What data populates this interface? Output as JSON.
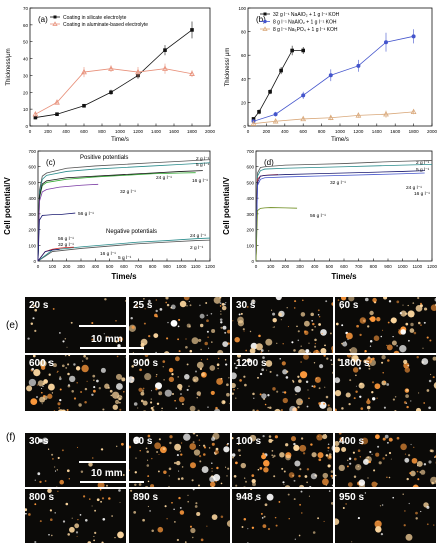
{
  "colors": {
    "black": "#111111",
    "salmon": "#e8907a",
    "navy": "#1a1a70",
    "blue": "#4455cc",
    "tan": "#d9a87a",
    "gray": "#555555",
    "teal": "#2b8c8c",
    "red": "#cc2222",
    "green": "#33aa33",
    "purple": "#7a3aa3",
    "olive": "#6a8a1a",
    "orange": "#d06a2a"
  },
  "chart_data": [
    {
      "id": "a",
      "type": "line",
      "panel_label": "(a)",
      "xlabel": "Time/s",
      "ylabel": "Thickness/μm",
      "xlim": [
        0,
        2000
      ],
      "ylim": [
        0,
        70
      ],
      "xticks": [
        "0",
        "200",
        "400",
        "600",
        "800",
        "1000",
        "1200",
        "1400",
        "1600",
        "1800",
        "2000"
      ],
      "yticks": [
        "0",
        "10",
        "20",
        "30",
        "40",
        "50",
        "60",
        "70"
      ],
      "legend_position": "top-left",
      "series": [
        {
          "name": "Coating in silicate electrolyte",
          "color": "#111111",
          "marker": "square",
          "x": [
            60,
            300,
            600,
            900,
            1200,
            1500,
            1800
          ],
          "y": [
            5,
            7,
            12,
            20,
            30,
            45,
            57
          ],
          "err": [
            1,
            1,
            1,
            1.5,
            2,
            3,
            5
          ]
        },
        {
          "name": "Coating in aluminate-based electrolyte",
          "color": "#e8907a",
          "marker": "triangle",
          "x": [
            60,
            300,
            600,
            900,
            1200,
            1500,
            1800
          ],
          "y": [
            7,
            14,
            32,
            34,
            32,
            34,
            31
          ],
          "err": [
            1,
            1,
            3,
            2,
            3,
            3,
            2
          ]
        }
      ]
    },
    {
      "id": "b",
      "type": "line",
      "panel_label": "(b)",
      "xlabel": "Time/s",
      "ylabel": "Thickness/ μm",
      "xlim": [
        0,
        2000
      ],
      "ylim": [
        0,
        100
      ],
      "xticks": [
        "0",
        "200",
        "400",
        "600",
        "800",
        "1000",
        "1200",
        "1400",
        "1600",
        "1800",
        "2000"
      ],
      "yticks": [
        "0",
        "20",
        "40",
        "60",
        "80",
        "100"
      ],
      "legend_position": "top-left",
      "series": [
        {
          "name": "32 g l⁻¹ NaAlO₂ + 1 g l⁻¹ KOH",
          "color": "#111111",
          "marker": "square",
          "x": [
            60,
            120,
            240,
            360,
            480,
            600
          ],
          "y": [
            6,
            12,
            29,
            47,
            64,
            64
          ],
          "err": [
            1,
            2,
            2,
            3,
            4,
            3
          ]
        },
        {
          "name": "8 g l⁻¹ NaAlO₂ + 1 g l⁻¹ KOH",
          "color": "#4455cc",
          "marker": "circle",
          "x": [
            60,
            300,
            600,
            900,
            1200,
            1500,
            1800
          ],
          "y": [
            4,
            10,
            26,
            43,
            51,
            71,
            76
          ],
          "err": [
            1,
            2,
            3,
            5,
            5,
            8,
            6
          ]
        },
        {
          "name": "8 g l⁻¹ Na₃PO₄ + 1 g l⁻¹ KOH",
          "color": "#d9a87a",
          "marker": "triangle",
          "x": [
            60,
            300,
            600,
            900,
            1200,
            1500,
            1800
          ],
          "y": [
            2,
            4,
            6,
            7,
            9,
            10,
            12
          ],
          "err": [
            1,
            1,
            1,
            2,
            2,
            3,
            2
          ]
        }
      ]
    },
    {
      "id": "c",
      "type": "line",
      "panel_label": "(c)",
      "xlabel": "Time/s",
      "ylabel": "Cell potential/V",
      "xlim": [
        0,
        1200
      ],
      "ylim": [
        0,
        700
      ],
      "xticks": [
        "0",
        "100",
        "200",
        "300",
        "400",
        "500",
        "600",
        "700",
        "800",
        "900",
        "1000",
        "1100",
        "1200"
      ],
      "yticks": [
        "0",
        "100",
        "200",
        "300",
        "400",
        "500",
        "600",
        "700"
      ],
      "annotations": [
        "Positive potentials",
        "Negative potentials",
        "2 g l⁻¹",
        "5 g l⁻¹",
        "16 g l⁻¹",
        "24 g l⁻¹",
        "32 g l⁻¹",
        "56 g l⁻¹",
        "56 g l⁻¹",
        "32 g l⁻¹",
        "16 g l⁻¹",
        "5 g l⁻¹",
        "24 g l⁻¹",
        "2 g l⁻¹"
      ],
      "series": [
        {
          "name": "2 g l⁻¹",
          "color": "#555555",
          "x": [
            0,
            10,
            30,
            60,
            200,
            400,
            600,
            800,
            1000,
            1200
          ],
          "y": [
            0,
            450,
            540,
            560,
            590,
            605,
            615,
            625,
            635,
            645
          ]
        },
        {
          "name": "5 g l⁻¹",
          "color": "#2b8c8c",
          "x": [
            0,
            10,
            30,
            60,
            200,
            400,
            600,
            800,
            1000,
            1200
          ],
          "y": [
            0,
            430,
            520,
            545,
            570,
            585,
            595,
            605,
            615,
            625
          ]
        },
        {
          "name": "16 g l⁻¹",
          "color": "#33aa33",
          "x": [
            0,
            10,
            30,
            60,
            200,
            400,
            600,
            800,
            1000,
            1100
          ],
          "y": [
            0,
            400,
            480,
            500,
            520,
            535,
            545,
            555,
            560,
            562
          ]
        },
        {
          "name": "24 g l⁻¹",
          "color": "#111111",
          "x": [
            0,
            10,
            30,
            60,
            200,
            400,
            600,
            800,
            1000,
            1150
          ],
          "y": [
            0,
            410,
            490,
            510,
            530,
            540,
            550,
            560,
            570,
            575
          ]
        },
        {
          "name": "32 g l⁻¹",
          "color": "#7a3aa3",
          "x": [
            0,
            10,
            30,
            60,
            150,
            250,
            300,
            360,
            420
          ],
          "y": [
            0,
            380,
            440,
            455,
            470,
            478,
            482,
            485,
            488
          ]
        },
        {
          "name": "56 g l⁻¹",
          "color": "#1a1a70",
          "x": [
            0,
            10,
            30,
            60,
            100,
            150,
            200,
            260
          ],
          "y": [
            0,
            260,
            290,
            292,
            295,
            295,
            300,
            305
          ]
        },
        {
          "name": "neg 2 g l⁻¹",
          "color": "#555555",
          "x": [
            0,
            100,
            300,
            500,
            700,
            900,
            1100,
            1200
          ],
          "y": [
            0,
            60,
            80,
            95,
            110,
            120,
            130,
            133
          ]
        },
        {
          "name": "neg 24 g l⁻¹",
          "color": "#2b8c8c",
          "x": [
            0,
            100,
            300,
            500,
            700,
            900,
            1100,
            1200
          ],
          "y": [
            0,
            70,
            90,
            105,
            120,
            130,
            142,
            146
          ]
        },
        {
          "name": "neg 32 g l⁻¹",
          "color": "#cc2222",
          "x": [
            0,
            50,
            100,
            150,
            200,
            250
          ],
          "y": [
            0,
            60,
            75,
            82,
            86,
            88
          ]
        },
        {
          "name": "neg 56 g l⁻¹",
          "color": "#1a1a70",
          "x": [
            0,
            50,
            100,
            150
          ],
          "y": [
            0,
            60,
            70,
            74
          ]
        }
      ]
    },
    {
      "id": "d",
      "type": "line",
      "panel_label": "(d)",
      "xlabel": "Time/s",
      "ylabel": "Cell potential/V",
      "xlim": [
        0,
        1200
      ],
      "ylim": [
        0,
        700
      ],
      "xticks": [
        "0",
        "100",
        "200",
        "300",
        "400",
        "500",
        "600",
        "700",
        "800",
        "900",
        "1000",
        "1100",
        "1200"
      ],
      "yticks": [
        "0",
        "100",
        "200",
        "300",
        "400",
        "500",
        "600",
        "700"
      ],
      "annotations": [
        "2 g l⁻¹",
        "5 g l⁻¹",
        "32 g l⁻¹",
        "24 g l⁻¹",
        "16 g l⁻¹",
        "56 g l⁻¹"
      ],
      "series": [
        {
          "name": "2 g l⁻¹",
          "color": "#555555",
          "x": [
            0,
            10,
            30,
            60,
            200,
            400,
            600,
            800,
            1000,
            1200
          ],
          "y": [
            0,
            560,
            595,
            600,
            610,
            615,
            620,
            628,
            635,
            640
          ]
        },
        {
          "name": "5 g l⁻¹",
          "color": "#2b8c8c",
          "x": [
            0,
            10,
            30,
            60,
            200,
            400,
            600,
            800,
            1000,
            1200
          ],
          "y": [
            0,
            540,
            575,
            585,
            590,
            595,
            600,
            605,
            610,
            615
          ]
        },
        {
          "name": "32 g l⁻¹",
          "color": "#cc2222",
          "x": [
            0,
            10,
            30,
            60,
            100,
            150
          ],
          "y": [
            0,
            520,
            540,
            545,
            548,
            550
          ]
        },
        {
          "name": "24 g l⁻¹",
          "color": "#1a1a70",
          "x": [
            0,
            10,
            30,
            60,
            200,
            400,
            600,
            800,
            1000,
            1150
          ],
          "y": [
            0,
            500,
            540,
            545,
            550,
            555,
            560,
            565,
            570,
            575
          ]
        },
        {
          "name": "16 g l⁻¹",
          "color": "#4455cc",
          "x": [
            0,
            10,
            30,
            60,
            200,
            400,
            600,
            800,
            1000,
            1150
          ],
          "y": [
            0,
            480,
            520,
            530,
            535,
            540,
            545,
            550,
            555,
            560
          ]
        },
        {
          "name": "56 g l⁻¹",
          "color": "#6a8a1a",
          "x": [
            0,
            10,
            30,
            60,
            100,
            200,
            280
          ],
          "y": [
            0,
            320,
            335,
            338,
            340,
            338,
            336
          ]
        }
      ]
    }
  ],
  "panel_e": {
    "label": "(e)",
    "scale": "10 mm",
    "tiles": [
      "20 s",
      "25 s",
      "30 s",
      "60 s",
      "600 s",
      "900 s",
      "1200 s",
      "1800 s"
    ]
  },
  "panel_f": {
    "label": "(f)",
    "scale": "10 mm",
    "tiles": [
      "30 s",
      "60 s",
      "100 s",
      "400 s",
      "800 s",
      "890 s",
      "948 s",
      "950 s"
    ]
  }
}
